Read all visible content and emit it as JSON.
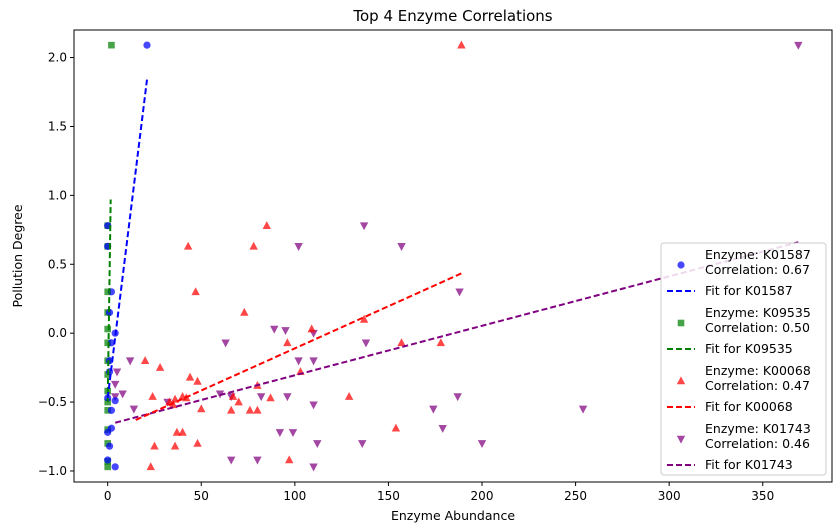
{
  "chart_data": {
    "type": "scatter",
    "title": "Top 4 Enzyme Correlations",
    "xlabel": "Enzyme Abundance",
    "ylabel": "Pollution Degree",
    "xlim": [
      -18,
      387
    ],
    "ylim": [
      -1.08,
      2.2
    ],
    "xticks": [
      0,
      50,
      100,
      150,
      200,
      250,
      300,
      350
    ],
    "yticks": [
      -1.0,
      -0.5,
      0.0,
      0.5,
      1.0,
      1.5,
      2.0
    ],
    "ytick_labels": [
      "−1.0",
      "−0.5",
      "0.0",
      "0.5",
      "1.0",
      "1.5",
      "2.0"
    ],
    "grid": false,
    "legend_position": "lower-right",
    "series": [
      {
        "name": "Enzyme: K01587",
        "correlation_label": "Correlation: 0.67",
        "fit_label": "Fit for K01587",
        "color": "#0000ff",
        "marker": "circle",
        "points": [
          [
            21,
            2.09
          ],
          [
            0,
            0.78
          ],
          [
            0,
            0.63
          ],
          [
            2,
            0.3
          ],
          [
            1,
            0.15
          ],
          [
            4,
            0.0
          ],
          [
            2,
            -0.07
          ],
          [
            1,
            -0.2
          ],
          [
            1,
            -0.28
          ],
          [
            0,
            -0.47
          ],
          [
            4,
            -0.49
          ],
          [
            2,
            -0.56
          ],
          [
            0,
            -0.72
          ],
          [
            2,
            -0.69
          ],
          [
            1,
            -0.82
          ],
          [
            0,
            -0.92
          ],
          [
            4,
            -0.97
          ]
        ],
        "fit": {
          "x": [
            0,
            21
          ],
          "y": [
            -0.47,
            1.84
          ]
        }
      },
      {
        "name": "Enzyme: K09535",
        "correlation_label": "Correlation: 0.50",
        "fit_label": "Fit for K09535",
        "color": "#008000",
        "marker": "square",
        "points": [
          [
            2,
            2.09
          ],
          [
            0,
            0.78
          ],
          [
            0,
            0.63
          ],
          [
            0,
            0.3
          ],
          [
            0,
            0.15
          ],
          [
            0,
            0.03
          ],
          [
            0,
            -0.07
          ],
          [
            0,
            -0.2
          ],
          [
            0,
            -0.3
          ],
          [
            0,
            -0.42
          ],
          [
            0,
            -0.5
          ],
          [
            0,
            -0.56
          ],
          [
            0,
            -0.7
          ],
          [
            0,
            -0.8
          ],
          [
            0,
            -0.93
          ],
          [
            0,
            -0.97
          ]
        ],
        "fit": {
          "x": [
            0,
            1.6
          ],
          "y": [
            -0.5,
            0.97
          ]
        }
      },
      {
        "name": "Enzyme: K00068",
        "correlation_label": "Correlation: 0.47",
        "fit_label": "Fit for K00068",
        "color": "#ff0000",
        "marker": "triangle-up",
        "points": [
          [
            189,
            2.09
          ],
          [
            85,
            0.78
          ],
          [
            43,
            0.63
          ],
          [
            78,
            0.63
          ],
          [
            47,
            0.3
          ],
          [
            73,
            0.15
          ],
          [
            109,
            0.03
          ],
          [
            96,
            -0.07
          ],
          [
            137,
            0.1
          ],
          [
            157,
            -0.07
          ],
          [
            178,
            -0.07
          ],
          [
            20,
            -0.2
          ],
          [
            28,
            -0.25
          ],
          [
            44,
            -0.32
          ],
          [
            48,
            -0.35
          ],
          [
            80,
            -0.38
          ],
          [
            103,
            -0.28
          ],
          [
            24,
            -0.46
          ],
          [
            33,
            -0.5
          ],
          [
            36,
            -0.48
          ],
          [
            40,
            -0.46
          ],
          [
            42,
            -0.47
          ],
          [
            67,
            -0.46
          ],
          [
            87,
            -0.47
          ],
          [
            35,
            -0.52
          ],
          [
            50,
            -0.55
          ],
          [
            66,
            -0.56
          ],
          [
            70,
            -0.5
          ],
          [
            76,
            -0.56
          ],
          [
            80,
            -0.56
          ],
          [
            129,
            -0.46
          ],
          [
            37,
            -0.72
          ],
          [
            40,
            -0.72
          ],
          [
            48,
            -0.8
          ],
          [
            154,
            -0.69
          ],
          [
            25,
            -0.82
          ],
          [
            36,
            -0.82
          ],
          [
            97,
            -0.92
          ],
          [
            23,
            -0.97
          ]
        ],
        "fit": {
          "x": [
            15,
            190
          ],
          "y": [
            -0.63,
            0.44
          ]
        }
      },
      {
        "name": "Enzyme: K01743",
        "correlation_label": "Correlation: 0.46",
        "fit_label": "Fit for K01743",
        "color": "#800080",
        "marker": "triangle-down",
        "points": [
          [
            369,
            2.09
          ],
          [
            137,
            0.78
          ],
          [
            102,
            0.63
          ],
          [
            157,
            0.63
          ],
          [
            188,
            0.3
          ],
          [
            89,
            0.03
          ],
          [
            95,
            0.02
          ],
          [
            110,
            0.0
          ],
          [
            138,
            -0.07
          ],
          [
            63,
            -0.07
          ],
          [
            102,
            -0.2
          ],
          [
            110,
            -0.2
          ],
          [
            12,
            -0.2
          ],
          [
            5,
            -0.28
          ],
          [
            4,
            -0.37
          ],
          [
            4,
            -0.46
          ],
          [
            8,
            -0.44
          ],
          [
            60,
            -0.44
          ],
          [
            66,
            -0.46
          ],
          [
            82,
            -0.46
          ],
          [
            96,
            -0.46
          ],
          [
            187,
            -0.46
          ],
          [
            14,
            -0.55
          ],
          [
            32,
            -0.5
          ],
          [
            174,
            -0.55
          ],
          [
            254,
            -0.55
          ],
          [
            110,
            -0.52
          ],
          [
            92,
            -0.72
          ],
          [
            99,
            -0.72
          ],
          [
            179,
            -0.69
          ],
          [
            112,
            -0.8
          ],
          [
            136,
            -0.8
          ],
          [
            200,
            -0.8
          ],
          [
            66,
            -0.92
          ],
          [
            80,
            -0.92
          ],
          [
            110,
            -0.97
          ]
        ],
        "fit": {
          "x": [
            4,
            369
          ],
          "y": [
            -0.65,
            0.66
          ]
        }
      }
    ]
  }
}
